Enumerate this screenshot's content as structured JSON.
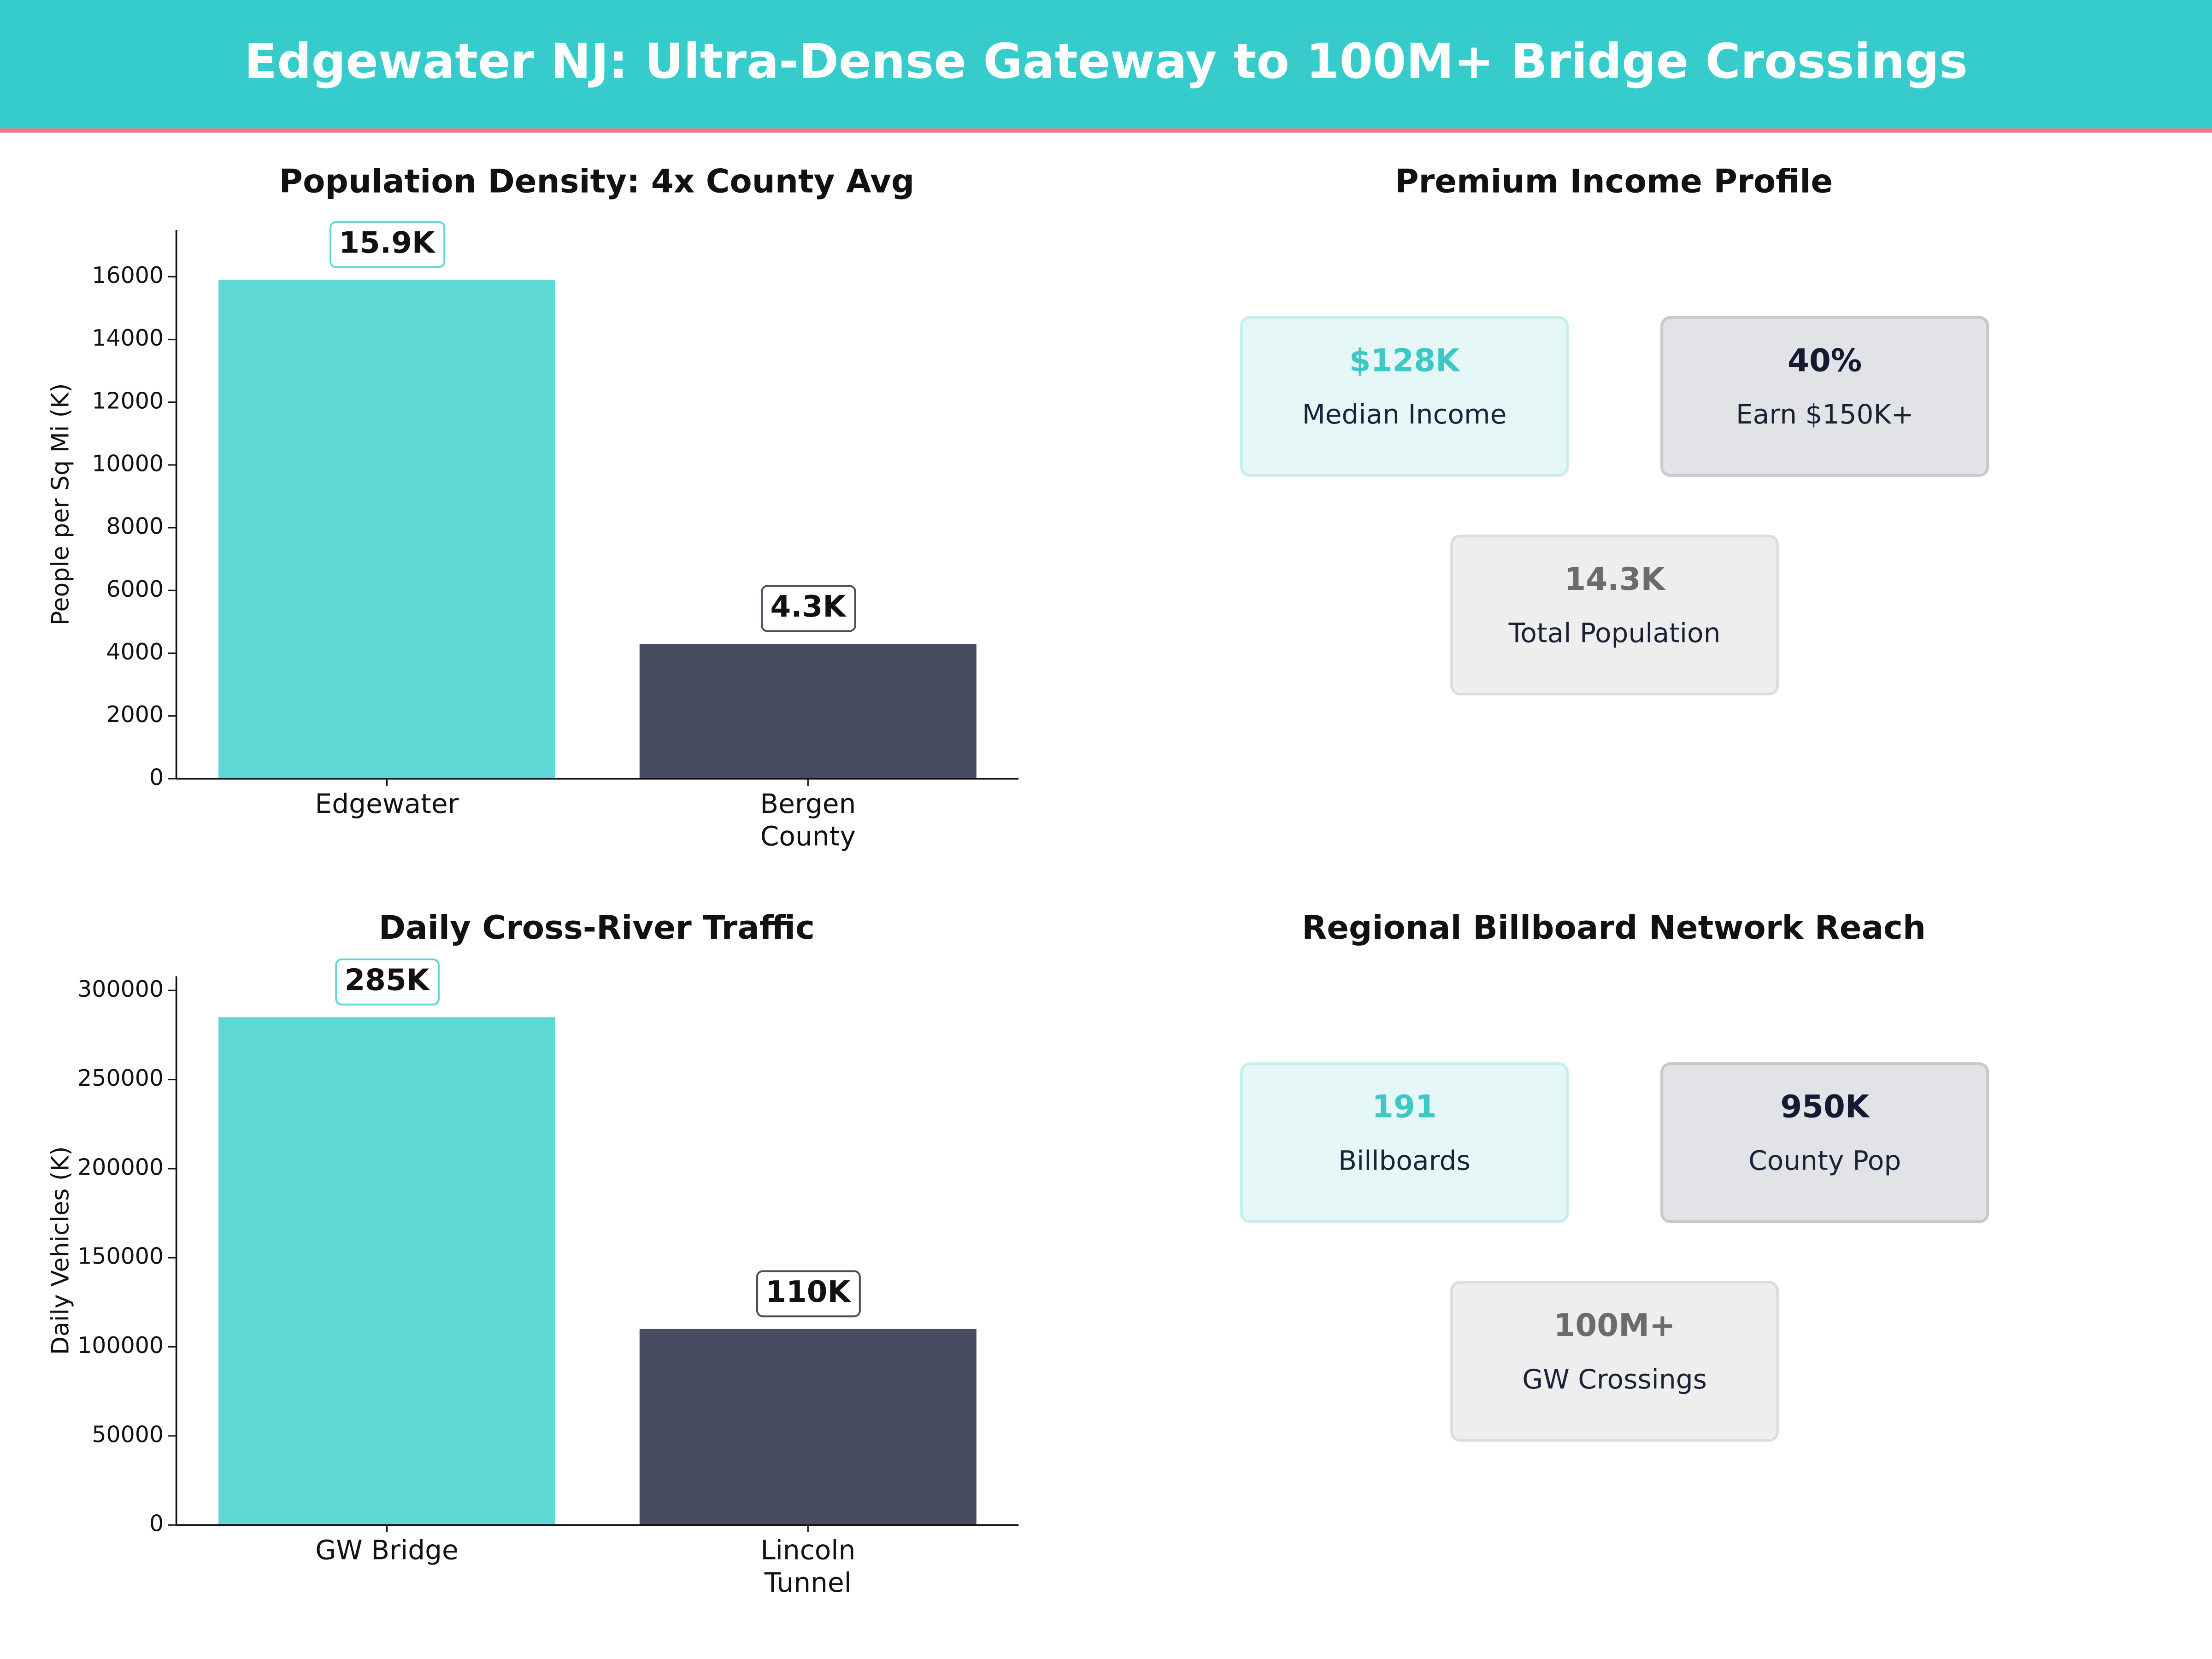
{
  "title": "Edgewater NJ: Ultra-Dense Gateway to 100M+ Bridge Crossings",
  "chart_data": [
    {
      "type": "bar",
      "title": "Population Density: 4x County Avg",
      "ylabel": "People per Sq Mi (K)",
      "categories": [
        "Edgewater",
        "Bergen County"
      ],
      "values": [
        15900,
        4300
      ],
      "value_labels": [
        "15.9K",
        "4.3K"
      ],
      "colors": [
        "#5dd8d5",
        "#474c60"
      ],
      "ylim": [
        0,
        17490
      ],
      "yticks": [
        0,
        2000,
        4000,
        6000,
        8000,
        10000,
        12000,
        14000,
        16000
      ]
    },
    {
      "type": "bar",
      "title": "Daily Cross-River Traffic",
      "ylabel": "Daily Vehicles (K)",
      "categories": [
        "GW Bridge",
        "Lincoln Tunnel"
      ],
      "values": [
        285000,
        110000
      ],
      "value_labels": [
        "285K",
        "110K"
      ],
      "colors": [
        "#5dd8d5",
        "#474c60"
      ],
      "ylim": [
        0,
        308000
      ],
      "yticks": [
        0,
        50000,
        100000,
        150000,
        200000,
        250000,
        300000
      ]
    }
  ],
  "panels": [
    {
      "title": "Premium Income Profile",
      "cards": [
        {
          "value": "$128K",
          "label": "Median Income"
        },
        {
          "value": "40%",
          "label": "Earn $150K+"
        },
        {
          "value": "14.3K",
          "label": "Total Population"
        }
      ]
    },
    {
      "title": "Regional Billboard Network Reach",
      "cards": [
        {
          "value": "191",
          "label": "Billboards"
        },
        {
          "value": "950K",
          "label": "County Pop"
        },
        {
          "value": "100M+",
          "label": "GW Crossings"
        }
      ]
    }
  ]
}
